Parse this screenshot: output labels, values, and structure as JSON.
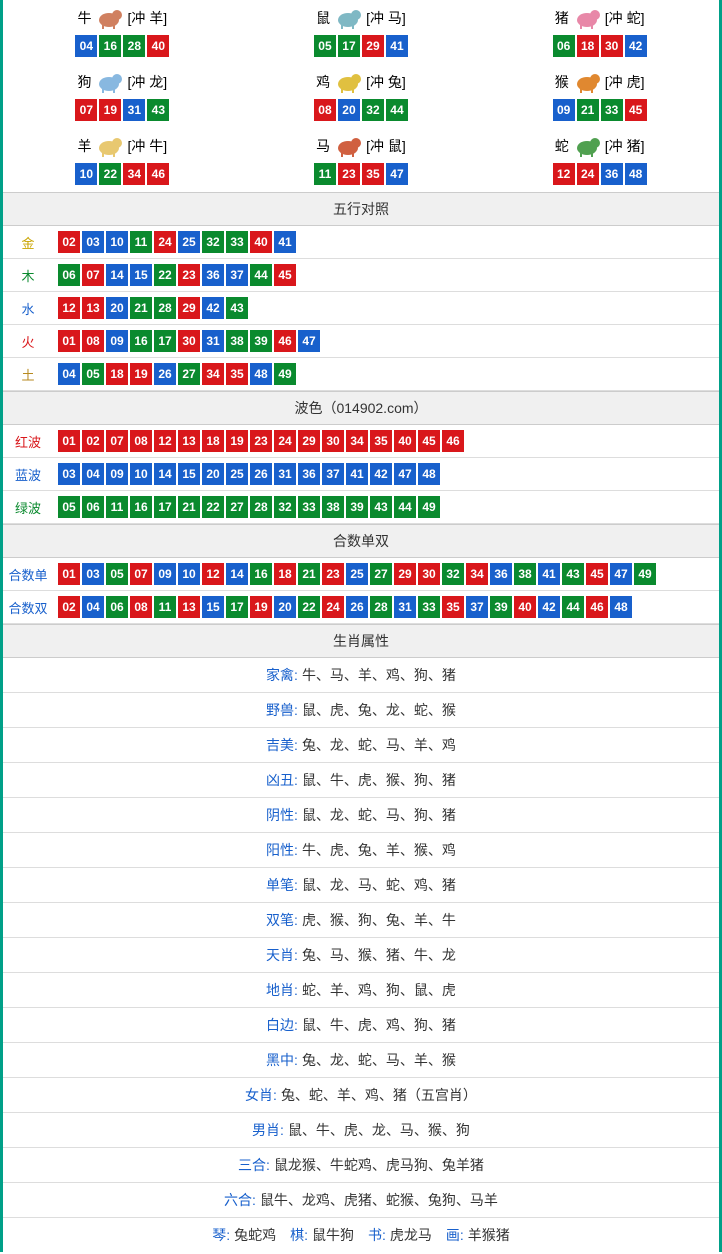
{
  "colors": {
    "red": "#d9171b",
    "blue": "#1860cc",
    "green": "#0a8a2e",
    "teal": "#00a088"
  },
  "zodiac": [
    {
      "char": "牛",
      "icon": "#d08060",
      "clash": "[冲 羊]",
      "nums": [
        {
          "n": "04",
          "c": "blue"
        },
        {
          "n": "16",
          "c": "green"
        },
        {
          "n": "28",
          "c": "green"
        },
        {
          "n": "40",
          "c": "red"
        }
      ]
    },
    {
      "char": "鼠",
      "icon": "#7fb8c4",
      "clash": "[冲 马]",
      "nums": [
        {
          "n": "05",
          "c": "green"
        },
        {
          "n": "17",
          "c": "green"
        },
        {
          "n": "29",
          "c": "red"
        },
        {
          "n": "41",
          "c": "blue"
        }
      ]
    },
    {
      "char": "猪",
      "icon": "#e888a8",
      "clash": "[冲 蛇]",
      "nums": [
        {
          "n": "06",
          "c": "green"
        },
        {
          "n": "18",
          "c": "red"
        },
        {
          "n": "30",
          "c": "red"
        },
        {
          "n": "42",
          "c": "blue"
        }
      ]
    },
    {
      "char": "狗",
      "icon": "#88b8e0",
      "clash": "[冲 龙]",
      "nums": [
        {
          "n": "07",
          "c": "red"
        },
        {
          "n": "19",
          "c": "red"
        },
        {
          "n": "31",
          "c": "blue"
        },
        {
          "n": "43",
          "c": "green"
        }
      ]
    },
    {
      "char": "鸡",
      "icon": "#e0c040",
      "clash": "[冲 兔]",
      "nums": [
        {
          "n": "08",
          "c": "red"
        },
        {
          "n": "20",
          "c": "blue"
        },
        {
          "n": "32",
          "c": "green"
        },
        {
          "n": "44",
          "c": "green"
        }
      ]
    },
    {
      "char": "猴",
      "icon": "#e08830",
      "clash": "[冲 虎]",
      "nums": [
        {
          "n": "09",
          "c": "blue"
        },
        {
          "n": "21",
          "c": "green"
        },
        {
          "n": "33",
          "c": "green"
        },
        {
          "n": "45",
          "c": "red"
        }
      ]
    },
    {
      "char": "羊",
      "icon": "#e8c870",
      "clash": "[冲 牛]",
      "nums": [
        {
          "n": "10",
          "c": "blue"
        },
        {
          "n": "22",
          "c": "green"
        },
        {
          "n": "34",
          "c": "red"
        },
        {
          "n": "46",
          "c": "red"
        }
      ]
    },
    {
      "char": "马",
      "icon": "#d06040",
      "clash": "[冲 鼠]",
      "nums": [
        {
          "n": "11",
          "c": "green"
        },
        {
          "n": "23",
          "c": "red"
        },
        {
          "n": "35",
          "c": "red"
        },
        {
          "n": "47",
          "c": "blue"
        }
      ]
    },
    {
      "char": "蛇",
      "icon": "#50a050",
      "clash": "[冲 猪]",
      "nums": [
        {
          "n": "12",
          "c": "red"
        },
        {
          "n": "24",
          "c": "red"
        },
        {
          "n": "36",
          "c": "blue"
        },
        {
          "n": "48",
          "c": "blue"
        }
      ]
    }
  ],
  "wuxing": {
    "title": "五行对照",
    "rows": [
      {
        "label": "金",
        "cls": "lbl-gold",
        "nums": [
          {
            "n": "02",
            "c": "red"
          },
          {
            "n": "03",
            "c": "blue"
          },
          {
            "n": "10",
            "c": "blue"
          },
          {
            "n": "11",
            "c": "green"
          },
          {
            "n": "24",
            "c": "red"
          },
          {
            "n": "25",
            "c": "blue"
          },
          {
            "n": "32",
            "c": "green"
          },
          {
            "n": "33",
            "c": "green"
          },
          {
            "n": "40",
            "c": "red"
          },
          {
            "n": "41",
            "c": "blue"
          }
        ]
      },
      {
        "label": "木",
        "cls": "lbl-wood",
        "nums": [
          {
            "n": "06",
            "c": "green"
          },
          {
            "n": "07",
            "c": "red"
          },
          {
            "n": "14",
            "c": "blue"
          },
          {
            "n": "15",
            "c": "blue"
          },
          {
            "n": "22",
            "c": "green"
          },
          {
            "n": "23",
            "c": "red"
          },
          {
            "n": "36",
            "c": "blue"
          },
          {
            "n": "37",
            "c": "blue"
          },
          {
            "n": "44",
            "c": "green"
          },
          {
            "n": "45",
            "c": "red"
          }
        ]
      },
      {
        "label": "水",
        "cls": "lbl-water",
        "nums": [
          {
            "n": "12",
            "c": "red"
          },
          {
            "n": "13",
            "c": "red"
          },
          {
            "n": "20",
            "c": "blue"
          },
          {
            "n": "21",
            "c": "green"
          },
          {
            "n": "28",
            "c": "green"
          },
          {
            "n": "29",
            "c": "red"
          },
          {
            "n": "42",
            "c": "blue"
          },
          {
            "n": "43",
            "c": "green"
          }
        ]
      },
      {
        "label": "火",
        "cls": "lbl-fire",
        "nums": [
          {
            "n": "01",
            "c": "red"
          },
          {
            "n": "08",
            "c": "red"
          },
          {
            "n": "09",
            "c": "blue"
          },
          {
            "n": "16",
            "c": "green"
          },
          {
            "n": "17",
            "c": "green"
          },
          {
            "n": "30",
            "c": "red"
          },
          {
            "n": "31",
            "c": "blue"
          },
          {
            "n": "38",
            "c": "green"
          },
          {
            "n": "39",
            "c": "green"
          },
          {
            "n": "46",
            "c": "red"
          },
          {
            "n": "47",
            "c": "blue"
          }
        ]
      },
      {
        "label": "土",
        "cls": "lbl-earth",
        "nums": [
          {
            "n": "04",
            "c": "blue"
          },
          {
            "n": "05",
            "c": "green"
          },
          {
            "n": "18",
            "c": "red"
          },
          {
            "n": "19",
            "c": "red"
          },
          {
            "n": "26",
            "c": "blue"
          },
          {
            "n": "27",
            "c": "green"
          },
          {
            "n": "34",
            "c": "red"
          },
          {
            "n": "35",
            "c": "red"
          },
          {
            "n": "48",
            "c": "blue"
          },
          {
            "n": "49",
            "c": "green"
          }
        ]
      }
    ]
  },
  "bose": {
    "title": "波色（014902.com）",
    "rows": [
      {
        "label": "红波",
        "cls": "lbl-red",
        "nums": [
          {
            "n": "01",
            "c": "red"
          },
          {
            "n": "02",
            "c": "red"
          },
          {
            "n": "07",
            "c": "red"
          },
          {
            "n": "08",
            "c": "red"
          },
          {
            "n": "12",
            "c": "red"
          },
          {
            "n": "13",
            "c": "red"
          },
          {
            "n": "18",
            "c": "red"
          },
          {
            "n": "19",
            "c": "red"
          },
          {
            "n": "23",
            "c": "red"
          },
          {
            "n": "24",
            "c": "red"
          },
          {
            "n": "29",
            "c": "red"
          },
          {
            "n": "30",
            "c": "red"
          },
          {
            "n": "34",
            "c": "red"
          },
          {
            "n": "35",
            "c": "red"
          },
          {
            "n": "40",
            "c": "red"
          },
          {
            "n": "45",
            "c": "red"
          },
          {
            "n": "46",
            "c": "red"
          }
        ]
      },
      {
        "label": "蓝波",
        "cls": "lbl-blue",
        "nums": [
          {
            "n": "03",
            "c": "blue"
          },
          {
            "n": "04",
            "c": "blue"
          },
          {
            "n": "09",
            "c": "blue"
          },
          {
            "n": "10",
            "c": "blue"
          },
          {
            "n": "14",
            "c": "blue"
          },
          {
            "n": "15",
            "c": "blue"
          },
          {
            "n": "20",
            "c": "blue"
          },
          {
            "n": "25",
            "c": "blue"
          },
          {
            "n": "26",
            "c": "blue"
          },
          {
            "n": "31",
            "c": "blue"
          },
          {
            "n": "36",
            "c": "blue"
          },
          {
            "n": "37",
            "c": "blue"
          },
          {
            "n": "41",
            "c": "blue"
          },
          {
            "n": "42",
            "c": "blue"
          },
          {
            "n": "47",
            "c": "blue"
          },
          {
            "n": "48",
            "c": "blue"
          }
        ]
      },
      {
        "label": "绿波",
        "cls": "lbl-green",
        "nums": [
          {
            "n": "05",
            "c": "green"
          },
          {
            "n": "06",
            "c": "green"
          },
          {
            "n": "11",
            "c": "green"
          },
          {
            "n": "16",
            "c": "green"
          },
          {
            "n": "17",
            "c": "green"
          },
          {
            "n": "21",
            "c": "green"
          },
          {
            "n": "22",
            "c": "green"
          },
          {
            "n": "27",
            "c": "green"
          },
          {
            "n": "28",
            "c": "green"
          },
          {
            "n": "32",
            "c": "green"
          },
          {
            "n": "33",
            "c": "green"
          },
          {
            "n": "38",
            "c": "green"
          },
          {
            "n": "39",
            "c": "green"
          },
          {
            "n": "43",
            "c": "green"
          },
          {
            "n": "44",
            "c": "green"
          },
          {
            "n": "49",
            "c": "green"
          }
        ]
      }
    ]
  },
  "heshu": {
    "title": "合数单双",
    "rows": [
      {
        "label": "合数单",
        "cls": "lbl-blue",
        "nums": [
          {
            "n": "01",
            "c": "red"
          },
          {
            "n": "03",
            "c": "blue"
          },
          {
            "n": "05",
            "c": "green"
          },
          {
            "n": "07",
            "c": "red"
          },
          {
            "n": "09",
            "c": "blue"
          },
          {
            "n": "10",
            "c": "blue"
          },
          {
            "n": "12",
            "c": "red"
          },
          {
            "n": "14",
            "c": "blue"
          },
          {
            "n": "16",
            "c": "green"
          },
          {
            "n": "18",
            "c": "red"
          },
          {
            "n": "21",
            "c": "green"
          },
          {
            "n": "23",
            "c": "red"
          },
          {
            "n": "25",
            "c": "blue"
          },
          {
            "n": "27",
            "c": "green"
          },
          {
            "n": "29",
            "c": "red"
          },
          {
            "n": "30",
            "c": "red"
          },
          {
            "n": "32",
            "c": "green"
          },
          {
            "n": "34",
            "c": "red"
          },
          {
            "n": "36",
            "c": "blue"
          },
          {
            "n": "38",
            "c": "green"
          },
          {
            "n": "41",
            "c": "blue"
          },
          {
            "n": "43",
            "c": "green"
          },
          {
            "n": "45",
            "c": "red"
          },
          {
            "n": "47",
            "c": "blue"
          },
          {
            "n": "49",
            "c": "green"
          }
        ]
      },
      {
        "label": "合数双",
        "cls": "lbl-blue",
        "nums": [
          {
            "n": "02",
            "c": "red"
          },
          {
            "n": "04",
            "c": "blue"
          },
          {
            "n": "06",
            "c": "green"
          },
          {
            "n": "08",
            "c": "red"
          },
          {
            "n": "11",
            "c": "green"
          },
          {
            "n": "13",
            "c": "red"
          },
          {
            "n": "15",
            "c": "blue"
          },
          {
            "n": "17",
            "c": "green"
          },
          {
            "n": "19",
            "c": "red"
          },
          {
            "n": "20",
            "c": "blue"
          },
          {
            "n": "22",
            "c": "green"
          },
          {
            "n": "24",
            "c": "red"
          },
          {
            "n": "26",
            "c": "blue"
          },
          {
            "n": "28",
            "c": "green"
          },
          {
            "n": "31",
            "c": "blue"
          },
          {
            "n": "33",
            "c": "green"
          },
          {
            "n": "35",
            "c": "red"
          },
          {
            "n": "37",
            "c": "blue"
          },
          {
            "n": "39",
            "c": "green"
          },
          {
            "n": "40",
            "c": "red"
          },
          {
            "n": "42",
            "c": "blue"
          },
          {
            "n": "44",
            "c": "green"
          },
          {
            "n": "46",
            "c": "red"
          },
          {
            "n": "48",
            "c": "blue"
          }
        ]
      }
    ]
  },
  "attrs": {
    "title": "生肖属性",
    "rows": [
      {
        "key": "家禽:",
        "val": "牛、马、羊、鸡、狗、猪"
      },
      {
        "key": "野兽:",
        "val": "鼠、虎、兔、龙、蛇、猴"
      },
      {
        "key": "吉美:",
        "val": "兔、龙、蛇、马、羊、鸡"
      },
      {
        "key": "凶丑:",
        "val": "鼠、牛、虎、猴、狗、猪"
      },
      {
        "key": "阴性:",
        "val": "鼠、龙、蛇、马、狗、猪"
      },
      {
        "key": "阳性:",
        "val": "牛、虎、兔、羊、猴、鸡"
      },
      {
        "key": "单笔:",
        "val": "鼠、龙、马、蛇、鸡、猪"
      },
      {
        "key": "双笔:",
        "val": "虎、猴、狗、兔、羊、牛"
      },
      {
        "key": "天肖:",
        "val": "兔、马、猴、猪、牛、龙"
      },
      {
        "key": "地肖:",
        "val": "蛇、羊、鸡、狗、鼠、虎"
      },
      {
        "key": "白边:",
        "val": "鼠、牛、虎、鸡、狗、猪"
      },
      {
        "key": "黑中:",
        "val": "兔、龙、蛇、马、羊、猴"
      },
      {
        "key": "女肖:",
        "val": "兔、蛇、羊、鸡、猪（五宫肖）"
      },
      {
        "key": "男肖:",
        "val": "鼠、牛、虎、龙、马、猴、狗"
      },
      {
        "key": "三合:",
        "val": "鼠龙猴、牛蛇鸡、虎马狗、兔羊猪"
      },
      {
        "key": "六合:",
        "val": "鼠牛、龙鸡、虎猪、蛇猴、兔狗、马羊"
      }
    ]
  },
  "footer": {
    "items": [
      {
        "key": "琴:",
        "val": "兔蛇鸡"
      },
      {
        "key": "棋:",
        "val": "鼠牛狗"
      },
      {
        "key": "书:",
        "val": "虎龙马"
      },
      {
        "key": "画:",
        "val": "羊猴猪"
      }
    ]
  }
}
